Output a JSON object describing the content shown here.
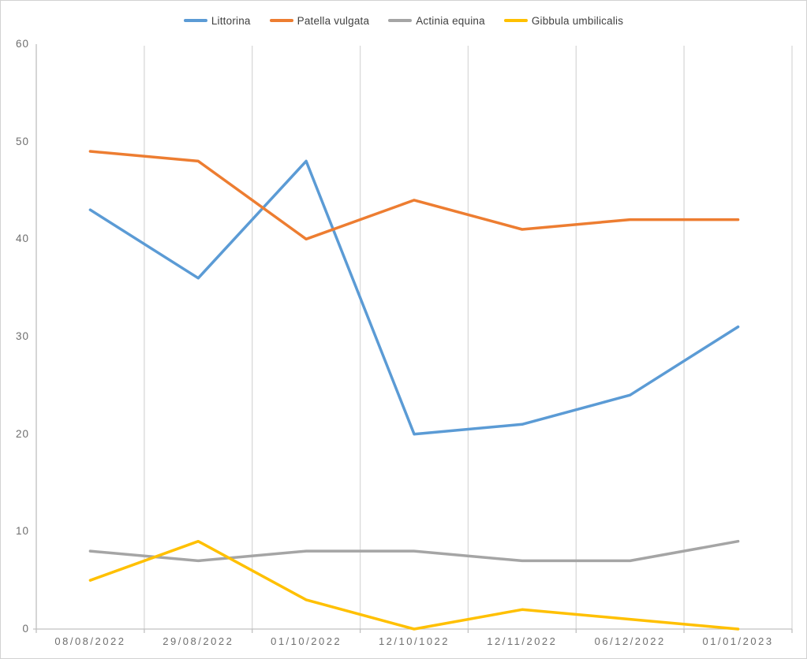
{
  "chart_data": {
    "type": "line",
    "title": "",
    "xlabel": "",
    "ylabel": "",
    "categories": [
      "08/08/2022",
      "29/08/2022",
      "01/10/2022",
      "12/10/1022",
      "12/11/2022",
      "06/12/2022",
      "01/01/2023"
    ],
    "series": [
      {
        "name": "Littorina",
        "color": "#5B9BD5",
        "values": [
          43,
          36,
          48,
          20,
          21,
          24,
          31
        ]
      },
      {
        "name": "Patella vulgata",
        "color": "#ED7D31",
        "values": [
          49,
          48,
          40,
          44,
          41,
          42,
          42
        ]
      },
      {
        "name": "Actinia equina",
        "color": "#A5A5A5",
        "values": [
          8,
          7,
          8,
          8,
          7,
          7,
          9
        ]
      },
      {
        "name": "Gibbula umbilicalis",
        "color": "#FFC000",
        "values": [
          5,
          9,
          3,
          0,
          2,
          1,
          0
        ]
      }
    ],
    "ylim": [
      0,
      60
    ],
    "yticks": [
      0,
      10,
      20,
      30,
      40,
      50,
      60
    ],
    "grid": "vertical-only",
    "legend_position": "top-center",
    "markers": "none"
  },
  "colors": {
    "background": "#FFFFFF",
    "border": "#D2D2D2",
    "gridline": "#D9D9D9",
    "axis_line": "#C0C0C0",
    "tick_label": "#6E6E6E",
    "legend_text": "#404040"
  }
}
